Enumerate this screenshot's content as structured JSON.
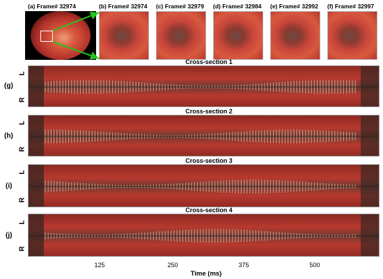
{
  "frames": [
    {
      "label": "(a) Frame# 32974"
    },
    {
      "label": "(b) Frame# 32974"
    },
    {
      "label": "(c) Frame# 32979"
    },
    {
      "label": "(d) Frame# 32984"
    },
    {
      "label": "(e) Frame# 32992"
    },
    {
      "label": "(f) Frame# 32997"
    }
  ],
  "cross_sections": [
    {
      "row": "(g)",
      "title": "Cross-section  1",
      "top": "L",
      "bottom": "R"
    },
    {
      "row": "(h)",
      "title": "Cross-section  2",
      "top": "L",
      "bottom": "R"
    },
    {
      "row": "(i)",
      "title": "Cross-section  3",
      "top": "L",
      "bottom": "R"
    },
    {
      "row": "(j)",
      "title": "Cross-section  4",
      "top": "L",
      "bottom": "R"
    }
  ],
  "axis": {
    "title": "Time (ms)",
    "ticks": [
      "125",
      "250",
      "375",
      "500"
    ]
  },
  "colors": {
    "tissue_red": "#c9463a",
    "dark_fold": "#4a3a36",
    "arrow_green": "#22c51e"
  }
}
